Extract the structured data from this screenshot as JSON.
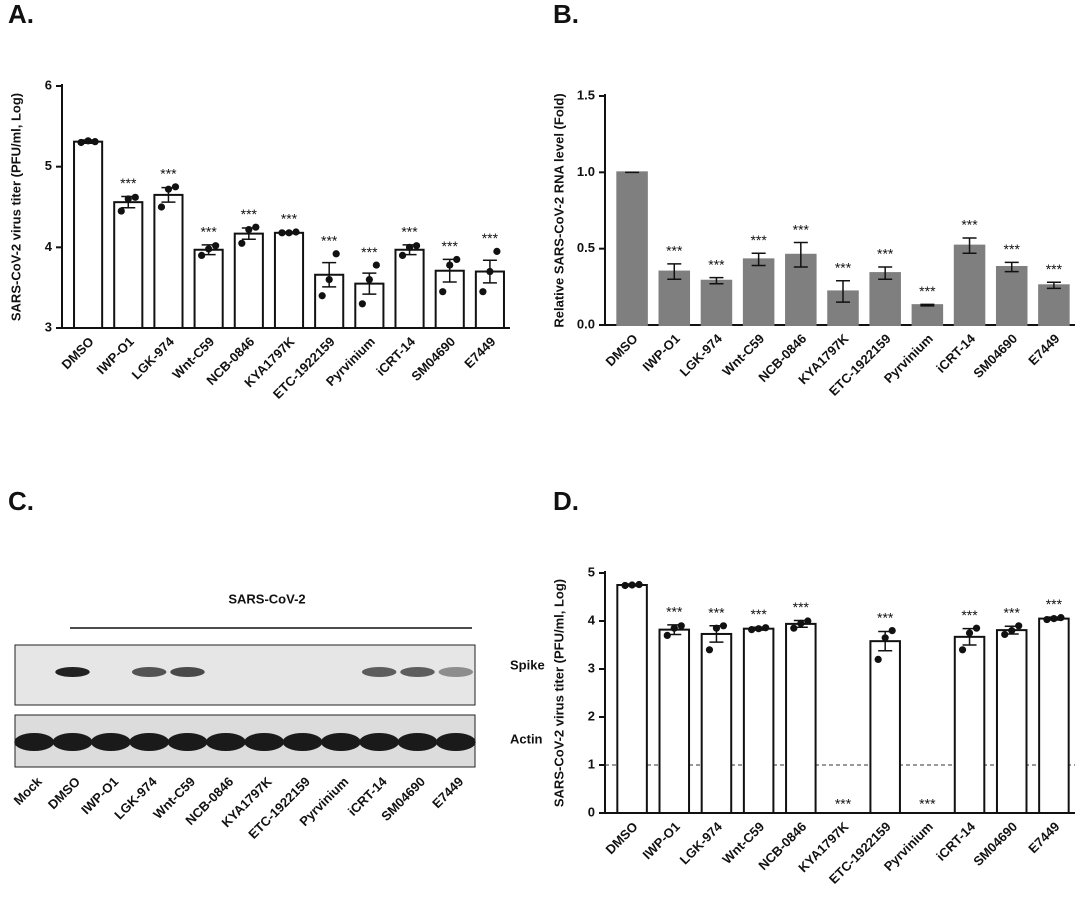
{
  "chart_data": [
    {
      "type": "bar",
      "panel": "A.",
      "ylabel": "SARS-CoV-2 virus titer (PFU/ml, Log)",
      "categories": [
        "DMSO",
        "IWP-O1",
        "LGK-974",
        "Wnt-C59",
        "NCB-0846",
        "KYA1797K",
        "ETC-1922159",
        "Pyrvinium",
        "iCRT-14",
        "SM04690",
        "E7449"
      ],
      "values": [
        5.31,
        4.56,
        4.65,
        3.97,
        4.17,
        4.18,
        3.66,
        3.55,
        3.97,
        3.71,
        3.7
      ],
      "errors": [
        0.02,
        0.07,
        0.09,
        0.06,
        0.07,
        0.01,
        0.15,
        0.13,
        0.06,
        0.14,
        0.14
      ],
      "points": [
        [
          5.3,
          5.32,
          5.31
        ],
        [
          4.45,
          4.6,
          4.62
        ],
        [
          4.5,
          4.72,
          4.75
        ],
        [
          3.9,
          3.98,
          4.02
        ],
        [
          4.05,
          4.22,
          4.25
        ],
        [
          4.18,
          4.18,
          4.19
        ],
        [
          3.4,
          3.6,
          3.92
        ],
        [
          3.3,
          3.6,
          3.78
        ],
        [
          3.9,
          4.0,
          4.02
        ],
        [
          3.45,
          3.78,
          3.85
        ],
        [
          3.45,
          3.7,
          3.95
        ]
      ],
      "annotations": [
        null,
        "***",
        "***",
        "***",
        "***",
        "***",
        "***",
        "***",
        "***",
        "***",
        "***"
      ],
      "color": "#ffffff",
      "edgecolor": "#111111",
      "ylim": [
        3,
        6
      ],
      "yticks": [
        3,
        4,
        5,
        6
      ]
    },
    {
      "type": "bar",
      "panel": "B.",
      "ylabel": "Relative SARS-CoV-2 RNA level (Fold)",
      "categories": [
        "DMSO",
        "IWP-O1",
        "LGK-974",
        "Wnt-C59",
        "NCB-0846",
        "KYA1797K",
        "ETC-1922159",
        "Pyrvinium",
        "iCRT-14",
        "SM04690",
        "E7449"
      ],
      "values": [
        1.0,
        0.35,
        0.29,
        0.43,
        0.46,
        0.22,
        0.34,
        0.13,
        0.52,
        0.38,
        0.26
      ],
      "errors": [
        0,
        0.05,
        0.02,
        0.04,
        0.08,
        0.07,
        0.04,
        0.005,
        0.05,
        0.03,
        0.02
      ],
      "annotations": [
        null,
        "***",
        "***",
        "***",
        "***",
        "***",
        "***",
        "***",
        "***",
        "***",
        "***"
      ],
      "color": "#7f7f7f",
      "edgecolor": "#7f7f7f",
      "ylim": [
        0,
        1.5
      ],
      "yticks": [
        {
          "value": 0,
          "label": "0.0"
        },
        {
          "value": 0.5,
          "label": "0.5"
        },
        {
          "value": 1,
          "label": "1.0"
        },
        {
          "value": 1.5,
          "label": "1.5"
        }
      ]
    },
    {
      "type": "bar",
      "panel": "D.",
      "ylabel": "SARS-CoV-2 virus titer (PFU/ml, Log)",
      "categories": [
        "DMSO",
        "IWP-O1",
        "LGK-974",
        "Wnt-C59",
        "NCB-0846",
        "KYA1797K",
        "ETC-1922159",
        "Pyrvinium",
        "iCRT-14",
        "SM04690",
        "E7449"
      ],
      "values": [
        4.75,
        3.82,
        3.73,
        3.84,
        3.94,
        null,
        3.58,
        null,
        3.67,
        3.81,
        4.05
      ],
      "errors": [
        0.02,
        0.1,
        0.17,
        0.03,
        0.07,
        null,
        0.2,
        null,
        0.17,
        0.08,
        0.03
      ],
      "points": [
        [
          4.74,
          4.75,
          4.76
        ],
        [
          3.7,
          3.85,
          3.9
        ],
        [
          3.4,
          3.85,
          3.9
        ],
        [
          3.82,
          3.84,
          3.86
        ],
        [
          3.85,
          3.95,
          4.0
        ],
        null,
        [
          3.2,
          3.65,
          3.8
        ],
        null,
        [
          3.4,
          3.75,
          3.85
        ],
        [
          3.72,
          3.8,
          3.9
        ],
        [
          4.03,
          4.05,
          4.07
        ]
      ],
      "annotations": [
        null,
        "***",
        "***",
        "***",
        "***",
        "***",
        "***",
        "***",
        "***",
        "***",
        "***"
      ],
      "reference_line": 1,
      "color": "#ffffff",
      "edgecolor": "#111111",
      "ylim": [
        0,
        5
      ],
      "yticks": [
        0,
        1,
        2,
        3,
        4,
        5
      ]
    }
  ],
  "blot": {
    "panel": "C.",
    "treatment": "SARS-CoV-2",
    "lanes": [
      "Mock",
      "DMSO",
      "IWP-O1",
      "LGK-974",
      "Wnt-C59",
      "NCB-0846",
      "KYA1797K",
      "ETC-1922159",
      "Pyrvinium",
      "iCRT-14",
      "SM04690",
      "E7449"
    ],
    "bands": [
      "Spike",
      "Actin"
    ]
  }
}
